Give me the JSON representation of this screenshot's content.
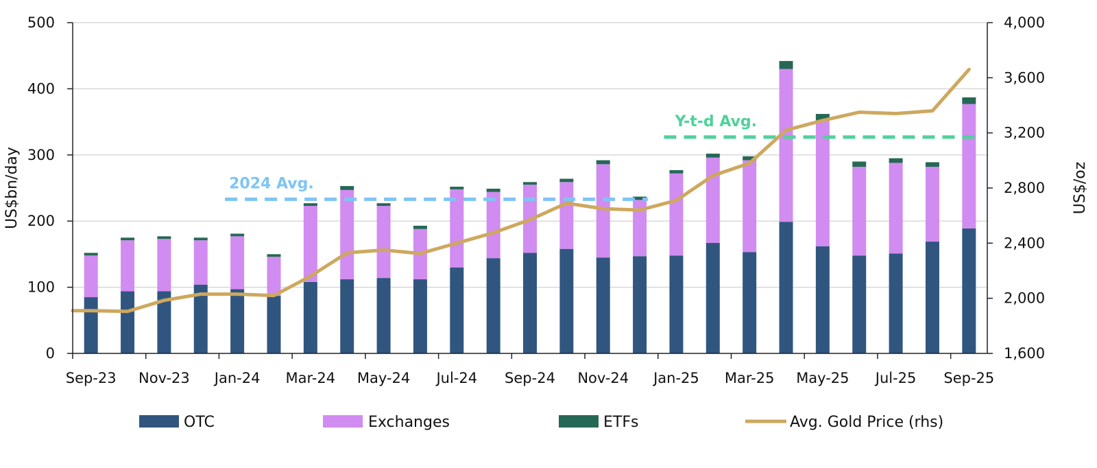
{
  "chart_data": {
    "type": "bar",
    "stacked": true,
    "categories": [
      "Sep-23",
      "Oct-23",
      "Nov-23",
      "Dec-23",
      "Jan-24",
      "Feb-24",
      "Mar-24",
      "Apr-24",
      "May-24",
      "Jun-24",
      "Jul-24",
      "Aug-24",
      "Sep-24",
      "Oct-24",
      "Nov-24",
      "Dec-24",
      "Jan-25",
      "Feb-25",
      "Mar-25",
      "Apr-25",
      "May-25",
      "Jun-25",
      "Jul-25",
      "Aug-25",
      "Sep-25"
    ],
    "x_tick_labels": [
      "Sep-23",
      "Nov-23",
      "Jan-24",
      "Mar-24",
      "May-24",
      "Jul-24",
      "Sep-24",
      "Nov-24",
      "Jan-25",
      "Mar-25",
      "May-25",
      "Jul-25",
      "Sep-25"
    ],
    "series": [
      {
        "name": "OTC",
        "color": "#30567f",
        "axis": "left",
        "values": [
          85,
          94,
          94,
          104,
          97,
          87,
          108,
          112,
          114,
          112,
          130,
          144,
          152,
          158,
          145,
          147,
          148,
          167,
          153,
          199,
          162,
          148,
          151,
          169,
          189
        ]
      },
      {
        "name": "Exchanges",
        "color": "#d08cf0",
        "axis": "left",
        "values": [
          63,
          77,
          79,
          67,
          80,
          59,
          115,
          135,
          109,
          76,
          118,
          100,
          103,
          101,
          141,
          85,
          124,
          129,
          139,
          231,
          190,
          134,
          137,
          113,
          188
        ]
      },
      {
        "name": "ETFs",
        "color": "#266856",
        "axis": "left",
        "values": [
          4,
          4,
          4,
          4,
          4,
          4,
          4,
          6,
          4,
          5,
          4,
          5,
          4,
          5,
          6,
          5,
          5,
          6,
          6,
          12,
          10,
          8,
          7,
          7,
          10
        ]
      },
      {
        "name": "Avg. Gold Price (rhs)",
        "type": "line",
        "color": "#cda85e",
        "axis": "right",
        "values": [
          1910,
          1905,
          1985,
          2030,
          2030,
          2020,
          2160,
          2330,
          2350,
          2325,
          2400,
          2475,
          2570,
          2690,
          2650,
          2640,
          2710,
          2890,
          2980,
          3220,
          3290,
          3350,
          3340,
          3360,
          3660
        ]
      }
    ],
    "annotations": [
      {
        "label": "2024 Avg.",
        "value": 233,
        "axis": "left",
        "from": "Jan-24",
        "to": "Dec-24",
        "color": "#7fc4f4"
      },
      {
        "label": "Y-t-d Avg.",
        "value": 327,
        "axis": "left",
        "from": "Jan-25",
        "to": "Sep-25",
        "color": "#4fd29b"
      }
    ],
    "ylabel": "US$bn/day",
    "y2label": "US$/oz",
    "ylim": [
      0,
      500
    ],
    "y2lim": [
      1600,
      4000
    ],
    "yticks": [
      0,
      100,
      200,
      300,
      400,
      500
    ],
    "y2ticks": [
      1600,
      2000,
      2400,
      2800,
      3200,
      3600,
      4000
    ],
    "grid": true,
    "legend_position": "bottom"
  },
  "axis_labels": {
    "y_left_ticks": [
      "0",
      "100",
      "200",
      "300",
      "400",
      "500"
    ],
    "y_right_ticks": [
      "1,600",
      "2,000",
      "2,400",
      "2,800",
      "3,200",
      "3,600",
      "4,000"
    ]
  }
}
